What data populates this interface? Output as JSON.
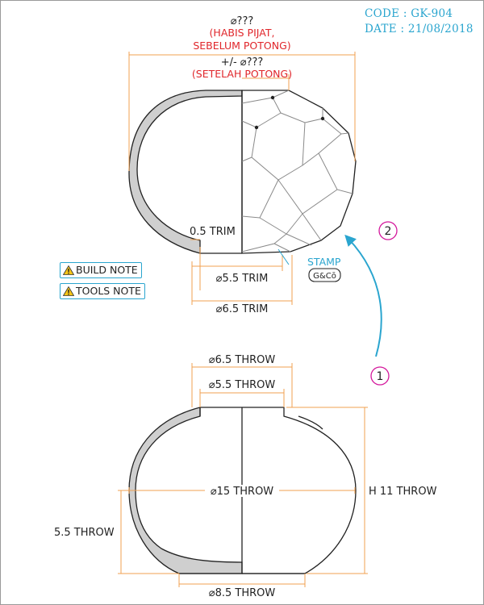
{
  "header": {
    "code_line": "CODE : GK-904",
    "date_line": "DATE : 21/08/2018"
  },
  "trimmed_view": {
    "top_dim_1_value": "⌀???",
    "top_dim_1_note_line1": "(HABIS PIJAT,",
    "top_dim_1_note_line2": "SEBELUM POTONG)",
    "top_dim_2_value": "+/- ⌀???",
    "top_dim_2_note": "(SETELAH POTONG)",
    "wall_trim_label": "0.5 TRIM",
    "inner_base_label": "⌀5.5 TRIM",
    "outer_base_label": "⌀6.5 TRIM",
    "stamp_label": "STAMP",
    "stamp_mark": "G&Cō"
  },
  "notes": {
    "build_note": "BUILD NOTE",
    "tools_note": "TOOLS NOTE"
  },
  "steps": {
    "step_1": "1",
    "step_2": "2"
  },
  "thrown_view": {
    "outer_rim_label": "⌀6.5 THROW",
    "inner_rim_label": "⌀5.5 THROW",
    "body_diameter_label": "⌀15 THROW",
    "height_label": "H 11 THROW",
    "lower_height_label": "5.5 THROW",
    "base_label": "⌀8.5 THROW"
  },
  "colors": {
    "dimension_lines": "#f0a050",
    "red_text": "#e0262b",
    "accent_cyan": "#2aa5cf",
    "step_magenta": "#d4189c",
    "wall_fill": "#cfcfcf"
  }
}
